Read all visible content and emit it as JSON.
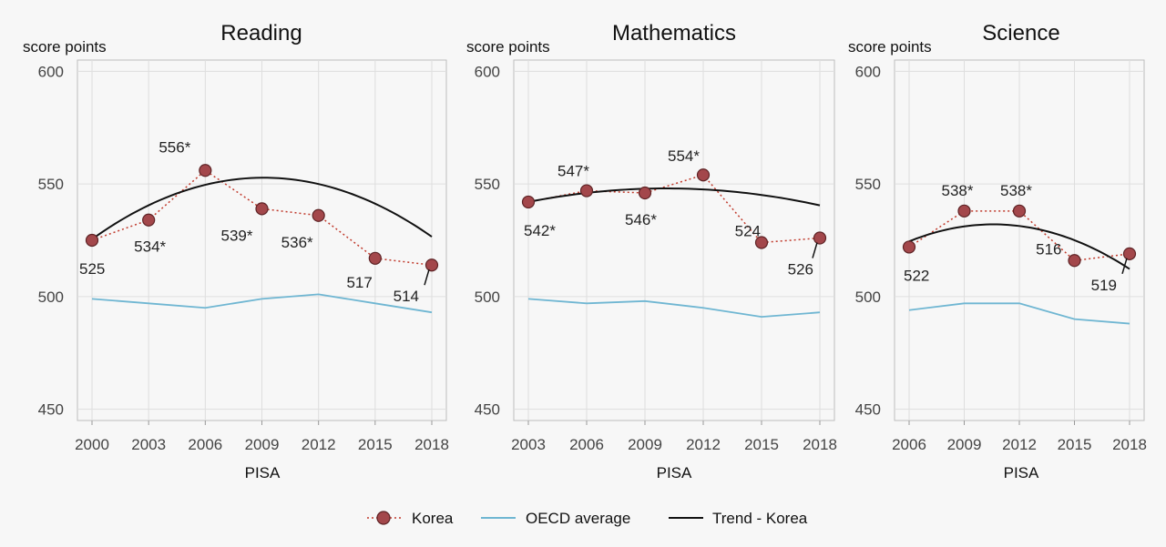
{
  "colors": {
    "korea_marker": "#a3474b",
    "korea_marker_edge": "#5e2426",
    "korea_dots": "#c0392b",
    "oecd_line": "#6fb6d2",
    "trend_line": "#111111"
  },
  "legend": {
    "korea": "Korea",
    "oecd": "OECD average",
    "trend": "Trend - Korea"
  },
  "chart_data": [
    {
      "type": "line",
      "title": "Reading",
      "ylabel": "score points",
      "xlabel": "PISA",
      "ylim": [
        445,
        605
      ],
      "yticks": [
        450,
        500,
        550,
        600
      ],
      "x": [
        2000,
        2003,
        2006,
        2009,
        2012,
        2015,
        2018
      ],
      "series": [
        {
          "name": "Korea",
          "values": [
            525,
            534,
            556,
            539,
            536,
            517,
            514
          ],
          "labels": [
            "525",
            "534*",
            "556*",
            "539*",
            "536*",
            "517",
            "514"
          ]
        },
        {
          "name": "OECD average",
          "values": [
            499,
            497,
            495,
            499,
            501,
            497,
            493
          ]
        },
        {
          "name": "Trend - Korea",
          "quadratic": [
            525.5,
            6.0,
            -0.33
          ]
        }
      ]
    },
    {
      "type": "line",
      "title": "Mathematics",
      "ylabel": "score points",
      "xlabel": "PISA",
      "ylim": [
        445,
        605
      ],
      "yticks": [
        450,
        500,
        550,
        600
      ],
      "x": [
        2003,
        2006,
        2009,
        2012,
        2015,
        2018
      ],
      "series": [
        {
          "name": "Korea",
          "values": [
            542,
            547,
            546,
            554,
            524,
            526
          ],
          "labels": [
            "542*",
            "547*",
            "546*",
            "554*",
            "524",
            "526"
          ]
        },
        {
          "name": "OECD average",
          "values": [
            499,
            497,
            498,
            495,
            491,
            493
          ]
        },
        {
          "name": "Trend - Korea",
          "quadratic": [
            542.0,
            1.7,
            -0.12
          ]
        }
      ]
    },
    {
      "type": "line",
      "title": "Science",
      "ylabel": "score points",
      "xlabel": "PISA",
      "ylim": [
        445,
        605
      ],
      "yticks": [
        450,
        500,
        550,
        600
      ],
      "x": [
        2006,
        2009,
        2012,
        2015,
        2018
      ],
      "series": [
        {
          "name": "Korea",
          "values": [
            522,
            538,
            538,
            516,
            519
          ],
          "labels": [
            "522",
            "538*",
            "538*",
            "516",
            "519"
          ]
        },
        {
          "name": "OECD average",
          "values": [
            494,
            497,
            497,
            490,
            488
          ]
        },
        {
          "name": "Trend - Korea",
          "quadratic": [
            524.5,
            3.3,
            -0.36
          ]
        }
      ]
    }
  ]
}
